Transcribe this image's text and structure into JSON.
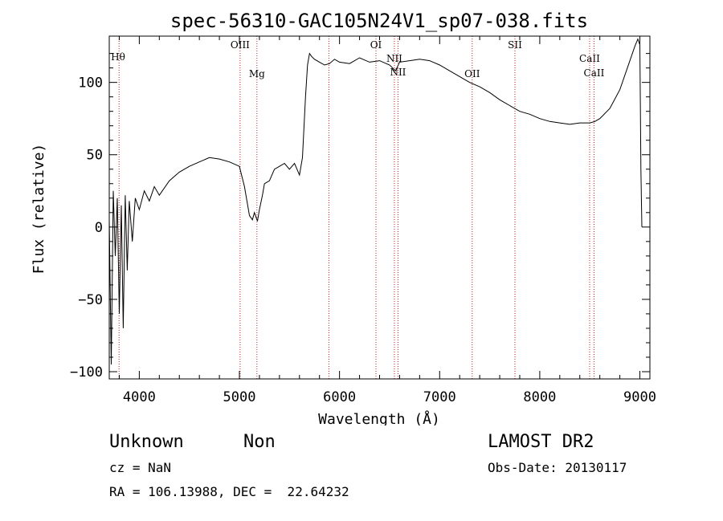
{
  "chart_data": {
    "type": "line",
    "title": "spec-56310-GAC105N24V1_sp07-038.fits",
    "xlabel": "Wavelength (Å)",
    "ylabel": "Flux (relative)",
    "xlim": [
      3700,
      9100
    ],
    "ylim": [
      -105,
      132
    ],
    "xticks": [
      4000,
      5000,
      6000,
      7000,
      8000,
      9000
    ],
    "yticks": [
      -100,
      -50,
      0,
      50,
      100
    ],
    "xtick_labels": [
      "4000",
      "5000",
      "6000",
      "7000",
      "8000",
      "9000"
    ],
    "ytick_labels": [
      "−100",
      "−50",
      "0",
      "50",
      "100"
    ],
    "grid": false,
    "series": [
      {
        "line_color": "#000000",
        "x": [
          3700,
          3720,
          3740,
          3760,
          3780,
          3800,
          3820,
          3840,
          3860,
          3880,
          3900,
          3930,
          3960,
          4000,
          4050,
          4100,
          4150,
          4200,
          4300,
          4400,
          4500,
          4600,
          4700,
          4800,
          4900,
          5000,
          5050,
          5100,
          5130,
          5150,
          5180,
          5200,
          5230,
          5250,
          5300,
          5350,
          5400,
          5450,
          5500,
          5550,
          5600,
          5630,
          5660,
          5680,
          5700,
          5720,
          5750,
          5800,
          5850,
          5900,
          5950,
          6000,
          6100,
          6200,
          6300,
          6400,
          6500,
          6560,
          6600,
          6700,
          6800,
          6900,
          7000,
          7100,
          7200,
          7300,
          7400,
          7500,
          7600,
          7700,
          7800,
          7900,
          8000,
          8100,
          8200,
          8300,
          8400,
          8500,
          8550,
          8600,
          8700,
          8800,
          8900,
          8950,
          8980,
          9000,
          9010,
          9020
        ],
        "y": [
          5,
          -95,
          25,
          -20,
          20,
          -60,
          15,
          -70,
          22,
          -30,
          18,
          -10,
          20,
          12,
          25,
          18,
          28,
          22,
          32,
          38,
          42,
          45,
          48,
          47,
          45,
          42,
          28,
          8,
          5,
          10,
          4,
          12,
          22,
          30,
          32,
          40,
          42,
          44,
          40,
          44,
          36,
          48,
          90,
          112,
          120,
          118,
          116,
          114,
          112,
          113,
          116,
          114,
          113,
          117,
          114,
          115,
          112,
          108,
          114,
          115,
          116,
          115,
          112,
          108,
          104,
          100,
          97,
          93,
          88,
          84,
          80,
          78,
          75,
          73,
          72,
          71,
          72,
          72,
          73,
          75,
          82,
          95,
          115,
          125,
          130,
          126,
          40,
          0
        ]
      }
    ],
    "lines": [
      {
        "label": "Hθ",
        "x": 3798
      },
      {
        "label": "OIII",
        "x": 5007
      },
      {
        "label": "Mg",
        "x": 5175
      },
      {
        "label": "",
        "x": 5894
      },
      {
        "label": "OI",
        "x": 6364
      },
      {
        "label": "NII",
        "x": 6548
      },
      {
        "label": "NII",
        "x": 6584
      },
      {
        "label": "OII",
        "x": 7325
      },
      {
        "label": "SII",
        "x": 7752
      },
      {
        "label": "CaII",
        "x": 8498
      },
      {
        "label": "CaII",
        "x": 8542
      }
    ]
  },
  "footer": {
    "class_label": "Unknown",
    "subclass_label": "Non",
    "survey_label": "LAMOST DR2",
    "cz_text": "cz = NaN",
    "obs_date_text": "Obs-Date: 20130117",
    "coords_text": "RA = 106.13988, DEC =  22.64232"
  }
}
